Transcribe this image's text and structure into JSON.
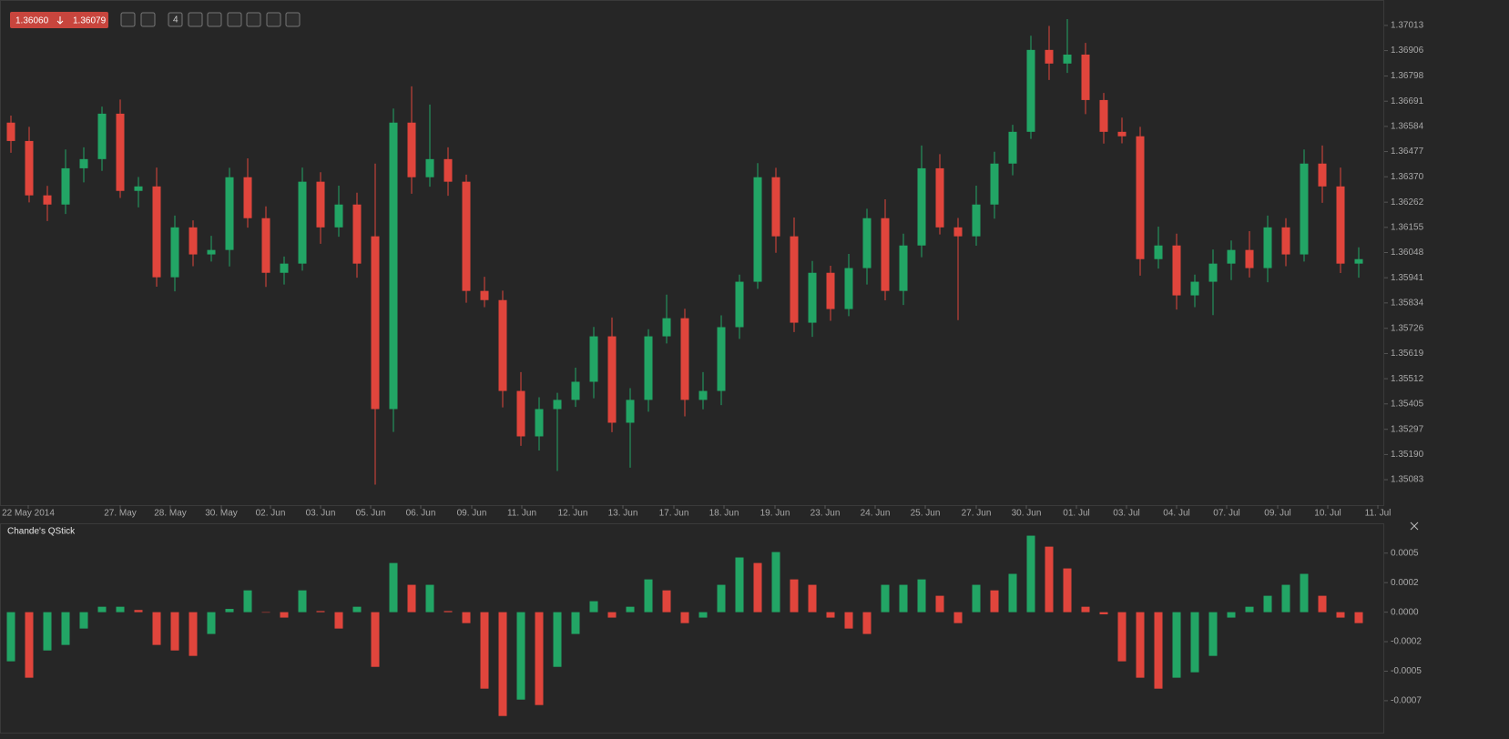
{
  "toolbar": {
    "bid": "1.36060",
    "ask": "1.36079",
    "period": "4"
  },
  "chart_data": [
    {
      "type": "candlestick",
      "colors": {
        "up": "#22a565",
        "down": "#e0453c"
      },
      "open": [
        1.366,
        1.36522,
        1.36291,
        1.36252,
        1.36406,
        1.36445,
        1.36638,
        1.3631,
        1.36329,
        1.35943,
        1.36155,
        1.3604,
        1.36059,
        1.36368,
        1.36194,
        1.35962,
        1.36001,
        1.36349,
        1.36155,
        1.36252,
        1.36117,
        1.35383,
        1.366,
        1.36368,
        1.36445,
        1.36349,
        1.35885,
        1.35846,
        1.3546,
        1.35267,
        1.35383,
        1.35422,
        1.35499,
        1.35692,
        1.35325,
        1.35422,
        1.35692,
        1.35769,
        1.35422,
        1.3546,
        1.35731,
        1.35924,
        1.36368,
        1.36117,
        1.3575,
        1.35962,
        1.35808,
        1.35982,
        1.36194,
        1.35885,
        1.36078,
        1.36406,
        1.36155,
        1.36117,
        1.36252,
        1.36426,
        1.36561,
        1.36909,
        1.36851,
        1.36889,
        1.36696,
        1.36561,
        1.36542,
        1.3602,
        1.36078,
        1.35866,
        1.35924,
        1.36001,
        1.36059,
        1.35982,
        1.36155,
        1.3604,
        1.36426,
        1.36329,
        1.36001
      ],
      "high": [
        1.3663,
        1.36582,
        1.36331,
        1.36486,
        1.36495,
        1.36668,
        1.36698,
        1.36369,
        1.36409,
        1.36205,
        1.36185,
        1.36119,
        1.36408,
        1.36448,
        1.36244,
        1.36031,
        1.36409,
        1.36389,
        1.36332,
        1.36302,
        1.36426,
        1.3666,
        1.36754,
        1.36677,
        1.36495,
        1.36379,
        1.35945,
        1.35886,
        1.3554,
        1.35433,
        1.35452,
        1.35559,
        1.35732,
        1.35772,
        1.35472,
        1.35722,
        1.35869,
        1.35809,
        1.3554,
        1.35781,
        1.35954,
        1.36428,
        1.36408,
        1.36197,
        1.36012,
        1.35992,
        1.36042,
        1.36234,
        1.36274,
        1.36128,
        1.36503,
        1.36466,
        1.36195,
        1.36332,
        1.36476,
        1.36591,
        1.36969,
        1.37011,
        1.3704,
        1.36939,
        1.36726,
        1.36621,
        1.36582,
        1.36158,
        1.36128,
        1.35954,
        1.36061,
        1.36099,
        1.36139,
        1.36205,
        1.36194,
        1.36486,
        1.36503,
        1.36409,
        1.3607
      ],
      "low": [
        1.36472,
        1.36261,
        1.36182,
        1.36212,
        1.36346,
        1.36395,
        1.3628,
        1.3624,
        1.35903,
        1.35883,
        1.3599,
        1.3601,
        1.35989,
        1.36154,
        1.35902,
        1.35912,
        1.35971,
        1.36085,
        1.36115,
        1.35941,
        1.35062,
        1.35286,
        1.36298,
        1.36328,
        1.36289,
        1.35835,
        1.35816,
        1.3539,
        1.35227,
        1.35207,
        1.3512,
        1.35392,
        1.35429,
        1.35285,
        1.35134,
        1.35372,
        1.35662,
        1.35352,
        1.35382,
        1.354,
        1.35681,
        1.35894,
        1.36047,
        1.3571,
        1.3569,
        1.35758,
        1.35778,
        1.35912,
        1.35845,
        1.35825,
        1.36028,
        1.36125,
        1.35761,
        1.36077,
        1.36192,
        1.36376,
        1.36531,
        1.36781,
        1.36811,
        1.36636,
        1.36511,
        1.36512,
        1.3595,
        1.3598,
        1.35806,
        1.35816,
        1.35782,
        1.35931,
        1.35942,
        1.35922,
        1.3599,
        1.3601,
        1.36259,
        1.35961,
        1.35941
      ],
      "close": [
        1.36522,
        1.36291,
        1.36252,
        1.36406,
        1.36445,
        1.36638,
        1.3631,
        1.36329,
        1.35943,
        1.36155,
        1.3604,
        1.36059,
        1.36368,
        1.36194,
        1.35962,
        1.36001,
        1.36349,
        1.36155,
        1.36252,
        1.36001,
        1.35383,
        1.366,
        1.36368,
        1.36445,
        1.36349,
        1.35885,
        1.35846,
        1.3546,
        1.35267,
        1.35383,
        1.35422,
        1.35499,
        1.35692,
        1.35325,
        1.35422,
        1.35692,
        1.35769,
        1.35422,
        1.3546,
        1.35731,
        1.35924,
        1.36368,
        1.36117,
        1.3575,
        1.35962,
        1.35808,
        1.35982,
        1.36194,
        1.35885,
        1.36078,
        1.36406,
        1.36155,
        1.36117,
        1.36252,
        1.36426,
        1.36561,
        1.36909,
        1.36851,
        1.36889,
        1.36696,
        1.36561,
        1.36542,
        1.3602,
        1.36078,
        1.35866,
        1.35924,
        1.36001,
        1.36059,
        1.35982,
        1.36155,
        1.3604,
        1.36426,
        1.36329,
        1.36001,
        1.3602
      ],
      "xlim": [
        -0.6,
        75.4
      ],
      "xticks": [
        {
          "value": 0.95,
          "label": "22 May 2014"
        },
        {
          "value": 6,
          "label": "27. May"
        },
        {
          "value": 8.75,
          "label": "28. May"
        },
        {
          "value": 11.55,
          "label": "30. May"
        },
        {
          "value": 14.25,
          "label": "02. Jun"
        },
        {
          "value": 17,
          "label": "03. Jun"
        },
        {
          "value": 19.75,
          "label": "05. Jun"
        },
        {
          "value": 22.5,
          "label": "06. Jun"
        },
        {
          "value": 25.3,
          "label": "09. Jun"
        },
        {
          "value": 28.05,
          "label": "11. Jun"
        },
        {
          "value": 30.85,
          "label": "12. Jun"
        },
        {
          "value": 33.6,
          "label": "13. Jun"
        },
        {
          "value": 36.4,
          "label": "17. Jun"
        },
        {
          "value": 39.15,
          "label": "18. Jun"
        },
        {
          "value": 41.95,
          "label": "19. Jun"
        },
        {
          "value": 44.7,
          "label": "23. Jun"
        },
        {
          "value": 47.45,
          "label": "24. Jun"
        },
        {
          "value": 50.2,
          "label": "25. Jun"
        },
        {
          "value": 53,
          "label": "27. Jun"
        },
        {
          "value": 55.75,
          "label": "30. Jun"
        },
        {
          "value": 58.5,
          "label": "01. Jul"
        },
        {
          "value": 61.25,
          "label": "03. Jul"
        },
        {
          "value": 64,
          "label": "04. Jul"
        },
        {
          "value": 66.75,
          "label": "07. Jul"
        },
        {
          "value": 69.55,
          "label": "09. Jul"
        },
        {
          "value": 72.3,
          "label": "10. Jul"
        },
        {
          "value": 75.05,
          "label": "11. Jul"
        }
      ],
      "ylim": [
        1.34975,
        1.37121
      ],
      "yticks": [
        1.37013,
        1.36906,
        1.36798,
        1.36691,
        1.36584,
        1.36477,
        {
          "value": 1.3637,
          "label": "1.36370"
        },
        1.36262,
        1.36155,
        1.36048,
        1.35941,
        1.35834,
        1.35726,
        1.35619,
        1.35512,
        1.35405,
        1.35297,
        {
          "value": 1.3519,
          "label": "1.35190"
        },
        1.35083
      ],
      "grid": false
    },
    {
      "type": "bar",
      "title": "Chande's QStick",
      "colors": {
        "up": "#22a565",
        "down": "#e0453c"
      },
      "values": [
        -0.000408,
        -0.000544,
        -0.000318,
        -0.000272,
        -0.000136,
        4.5e-05,
        4.5e-05,
        1.8e-05,
        -0.000272,
        -0.000318,
        -0.000363,
        -0.000181,
        2.7e-05,
        0.000181,
        0,
        -4.5e-05,
        0.000181,
        9e-06,
        -0.000136,
        4.5e-05,
        -0.000454,
        0.000408,
        0.000227,
        0.000227,
        9e-06,
        -9.1e-05,
        -0.000635,
        -0.000862,
        -0.000726,
        -0.000771,
        -0.000454,
        -0.000181,
        9.1e-05,
        -4.5e-05,
        4.5e-05,
        0.000272,
        0.000181,
        -9.1e-05,
        -4.5e-05,
        0.000227,
        0.000454,
        0.000408,
        0.000499,
        0.000272,
        0.000227,
        -4.5e-05,
        -0.000136,
        -0.000181,
        0.000227,
        0.000227,
        0.000272,
        0.000136,
        -9.1e-05,
        0.000227,
        0.000181,
        0.000318,
        0.000635,
        0.000544,
        0.000363,
        4.5e-05,
        -1.8e-05,
        -0.000408,
        -0.000544,
        -0.000635,
        -0.000544,
        -0.000499,
        -0.000363,
        -4.5e-05,
        4.5e-05,
        0.000136,
        0.000227,
        0.000318,
        0.000136,
        -4.5e-05,
        -9.1e-05
      ],
      "xlim": [
        -0.6,
        75.4
      ],
      "ylim": [
        -0.001,
        0.00073
      ],
      "yticks": [
        {
          "value": 0.00049,
          "label": "0.0005"
        },
        {
          "value": 0.000245,
          "label": "0.0002"
        },
        {
          "value": 0,
          "label": "0.0000"
        },
        {
          "value": -0.000245,
          "label": "-0.0002"
        },
        {
          "value": -0.00049,
          "label": "-0.0005"
        },
        {
          "value": -0.000735,
          "label": "-0.0007"
        }
      ],
      "grid": false
    }
  ]
}
